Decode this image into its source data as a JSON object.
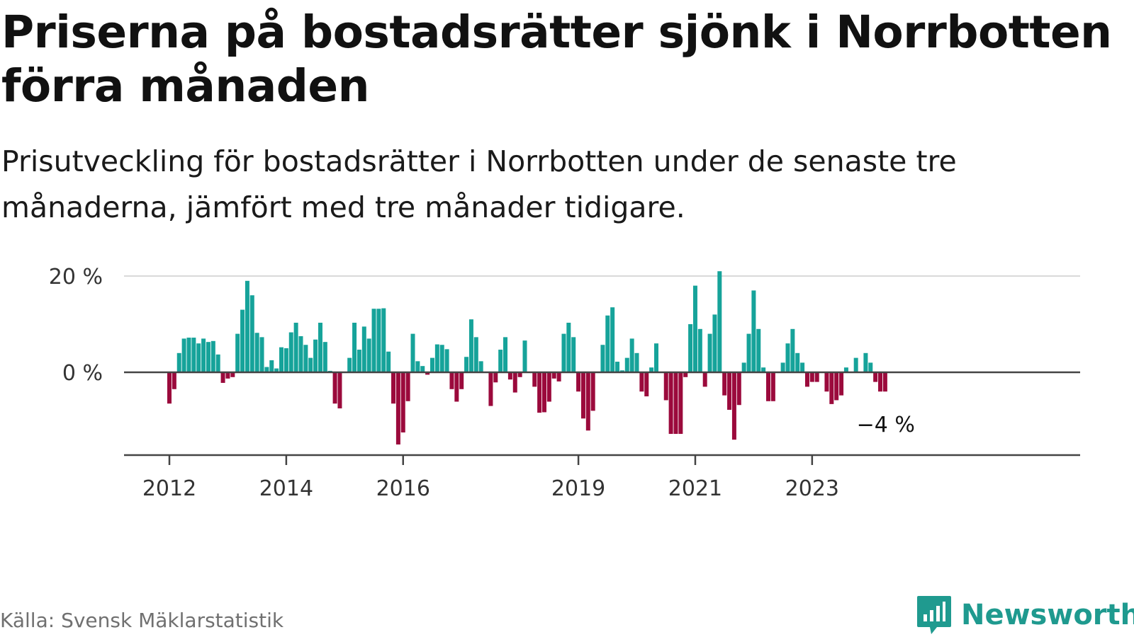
{
  "title": "Priserna på bostadsrätter sjönk i Norrbotten förra månaden",
  "subtitle": "Prisutveckling för bostadsrätter i Norrbotten under de senaste tre månaderna, jämfört med tre månader tidigare.",
  "source": "Källa: Svensk Mäklarstatistik",
  "brand": "Newsworthy",
  "colors": {
    "positive": "#16a39a",
    "negative": "#9b0a3c",
    "brand": "#1f9a8f"
  },
  "chart_data": {
    "type": "bar",
    "title": "Priserna på bostadsrätter sjönk i Norrbotten förra månaden",
    "ylabel": "",
    "ylim": [
      -17,
      20
    ],
    "yticks": [
      {
        "value": 20,
        "label": "20 %"
      },
      {
        "value": 0,
        "label": "0 %"
      }
    ],
    "x_start": "2012-01",
    "xticks": [
      {
        "year": 2012,
        "label": "2012"
      },
      {
        "year": 2014,
        "label": "2014"
      },
      {
        "year": 2016,
        "label": "2016"
      },
      {
        "year": 2019,
        "label": "2019"
      },
      {
        "year": 2021,
        "label": "2021"
      },
      {
        "year": 2023,
        "label": "2023"
      }
    ],
    "last_value_label": "−4 %",
    "values": [
      -6.5,
      -3.5,
      4,
      7,
      7.2,
      7.2,
      6,
      7,
      6.3,
      6.5,
      3.7,
      -2.2,
      -1.3,
      -1,
      8,
      13,
      19,
      16,
      8.2,
      7.3,
      1.1,
      2.5,
      0.8,
      5.2,
      5,
      8.3,
      10.3,
      7.5,
      5.7,
      3,
      6.8,
      10.3,
      6.3,
      0.3,
      -6.5,
      -7.5,
      0,
      3,
      10.3,
      4.7,
      9.5,
      7,
      13.2,
      13.2,
      13.3,
      4.3,
      -6.5,
      -15,
      -12.5,
      -6,
      8,
      2.3,
      1.3,
      -0.5,
      3,
      5.8,
      5.7,
      4.8,
      -3.5,
      -6.1,
      -3.5,
      3.2,
      11,
      7.3,
      2.3,
      0,
      -7,
      -2.1,
      4.7,
      7.3,
      -1.5,
      -4.2,
      -1,
      6.6,
      0,
      -3,
      -8.4,
      -8.3,
      -6.1,
      -1.3,
      -1.9,
      8,
      10.3,
      7.3,
      -4,
      -9.6,
      -12.1,
      -8,
      0,
      5.7,
      11.8,
      13.5,
      2.2,
      0.4,
      3,
      7,
      4,
      -4,
      -5,
      1,
      6,
      0,
      -5.8,
      -12.8,
      -12.8,
      -12.8,
      -1,
      10,
      18,
      9,
      -3,
      8,
      12,
      21,
      -4.8,
      -7.8,
      -14,
      -6.8,
      2,
      8,
      17,
      9,
      1,
      -6,
      -6,
      0,
      2,
      6,
      9,
      4,
      2,
      -3,
      -2,
      -2,
      0,
      -4,
      -6.6,
      -5.8,
      -4.8,
      1,
      0,
      3,
      0,
      4,
      2,
      -2,
      -4,
      -4
    ]
  }
}
